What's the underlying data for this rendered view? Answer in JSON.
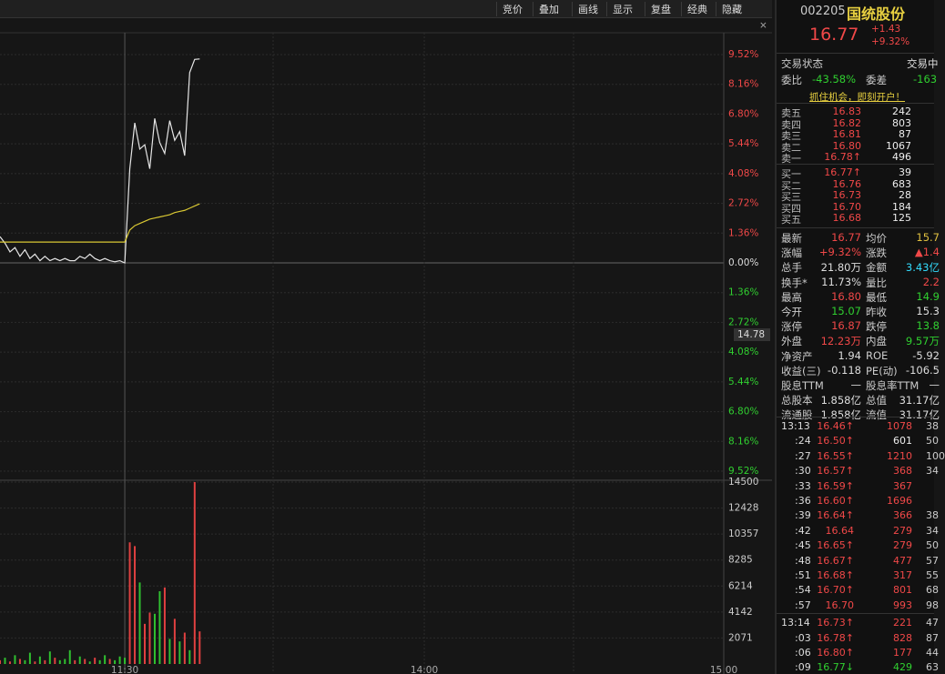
{
  "toolbar": [
    "竞价",
    "叠加",
    "画线",
    "显示",
    "复盘",
    "经典",
    "隐藏"
  ],
  "chart_data": [
    {
      "type": "line",
      "series": [
        {
          "color": "#e6e6e6",
          "values": [
            1.2,
            0.9,
            0.5,
            0.7,
            0.3,
            0.6,
            0.2,
            0.4,
            0.1,
            0.3,
            0.1,
            0.2,
            0.1,
            0.2,
            0.1,
            0.1,
            0.3,
            0.2,
            0.4,
            0.2,
            0.1,
            0.2,
            0.1,
            0.05,
            0.1,
            0.0,
            4.3,
            6.4,
            5.2,
            5.4,
            4.3,
            6.6,
            5.5,
            5.0,
            6.5,
            5.6,
            6.0,
            4.9,
            8.7,
            9.3,
            9.32
          ]
        },
        {
          "color": "#d9c833",
          "values": [
            0.95,
            0.95,
            0.95,
            0.95,
            0.95,
            0.95,
            0.95,
            0.95,
            0.95,
            0.95,
            0.95,
            0.95,
            0.95,
            0.95,
            0.95,
            0.95,
            0.95,
            0.95,
            0.95,
            0.95,
            0.95,
            0.95,
            0.95,
            0.95,
            0.95,
            0.95,
            1.5,
            1.7,
            1.8,
            1.9,
            2.0,
            2.05,
            2.1,
            2.15,
            2.2,
            2.3,
            2.35,
            2.4,
            2.5,
            2.6,
            2.7
          ]
        }
      ],
      "xlim": [
        0,
        145
      ],
      "ylim": [
        -9.52,
        9.52
      ],
      "yticks": [
        {
          "value": 9.52,
          "label": "9.52%"
        },
        {
          "value": 8.16,
          "label": "8.16%"
        },
        {
          "value": 6.8,
          "label": "6.80%"
        },
        {
          "value": 5.44,
          "label": "5.44%"
        },
        {
          "value": 4.08,
          "label": "4.08%"
        },
        {
          "value": 2.72,
          "label": "2.72%"
        },
        {
          "value": 1.36,
          "label": "1.36%"
        },
        {
          "value": 0,
          "label": "0.00%"
        },
        {
          "value": -1.36,
          "label": "1.36%"
        },
        {
          "value": -2.72,
          "label": "2.72%"
        },
        {
          "value": -4.08,
          "label": "4.08%"
        },
        {
          "value": -5.44,
          "label": "5.44%"
        },
        {
          "value": -6.8,
          "label": "6.80%"
        },
        {
          "value": -8.16,
          "label": "8.16%"
        },
        {
          "value": -9.52,
          "label": "9.52%"
        }
      ],
      "cursor_label": "14.78"
    },
    {
      "type": "bar",
      "values": [
        300,
        500,
        200,
        700,
        400,
        300,
        900,
        200,
        600,
        300,
        1000,
        500,
        300,
        400,
        1100,
        300,
        600,
        400,
        200,
        500,
        300,
        700,
        400,
        300,
        600,
        500,
        9700,
        9400,
        6500,
        3200,
        4100,
        4000,
        5800,
        6100,
        2000,
        3600,
        1800,
        2500,
        1100,
        14500,
        2600
      ],
      "colors": [
        "#e04040",
        "#30c030",
        "#e04040",
        "#30c030",
        "#e04040",
        "#30c030",
        "#30c030",
        "#e04040",
        "#30c030",
        "#e04040",
        "#30c030",
        "#e04040",
        "#30c030",
        "#30c030",
        "#30c030",
        "#e04040",
        "#30c030",
        "#e04040",
        "#30c030",
        "#e04040",
        "#30c030",
        "#30c030",
        "#e04040",
        "#30c030",
        "#30c030",
        "#30c030",
        "#e04040",
        "#e04040",
        "#30c030",
        "#e04040",
        "#e04040",
        "#30c030",
        "#30c030",
        "#e04040",
        "#30c030",
        "#e04040",
        "#30c030",
        "#e04040",
        "#30c030",
        "#e04040",
        "#e04040"
      ],
      "xlim": [
        0,
        145
      ],
      "ylim": [
        0,
        14500
      ],
      "yticks": [
        2071,
        4142,
        6214,
        8285,
        10357,
        12428,
        14500
      ],
      "xticks": [
        {
          "value": 25,
          "label": "11:30"
        },
        {
          "value": 85,
          "label": "14:00"
        },
        {
          "value": 145,
          "label": "15:00"
        }
      ]
    }
  ],
  "quote": {
    "code": "002205",
    "name": "国统股份",
    "price": "16.77",
    "change": "+1.43",
    "pct": "+9.32%"
  },
  "status": [
    "交易状态",
    "交易中"
  ],
  "ratio": [
    "委比",
    "-43.58%",
    "委差",
    "-163"
  ],
  "promo": "抓住机会，即刻开户！",
  "book": [
    [
      "卖五",
      "16.83",
      "242"
    ],
    [
      "卖四",
      "16.82",
      "803"
    ],
    [
      "卖三",
      "16.81",
      "87"
    ],
    [
      "卖二",
      "16.80",
      "1067"
    ],
    [
      "卖一",
      "16.78↑",
      "496"
    ],
    [
      "买一",
      "16.77↑",
      "39"
    ],
    [
      "买二",
      "16.76",
      "683"
    ],
    [
      "买三",
      "16.73",
      "28"
    ],
    [
      "买四",
      "16.70",
      "184"
    ],
    [
      "买五",
      "16.68",
      "125"
    ]
  ],
  "stats": [
    [
      "最新",
      "16.77",
      "均价",
      "15.7"
    ],
    [
      "涨幅",
      "+9.32%",
      "涨跌",
      "▲1.4"
    ],
    [
      "总手",
      "21.80万",
      "金额",
      "3.43亿"
    ],
    [
      "换手*",
      "11.73%",
      "量比",
      "2.2"
    ],
    [
      "最高",
      "16.80",
      "最低",
      "14.9"
    ],
    [
      "今开",
      "15.07",
      "昨收",
      "15.3"
    ],
    [
      "涨停",
      "16.87",
      "跌停",
      "13.8"
    ],
    [
      "外盘",
      "12.23万",
      "内盘",
      "9.57万"
    ],
    [
      "净资产",
      "1.94",
      "ROE",
      "-5.92"
    ],
    [
      "收益(三)",
      "-0.118",
      "PE(动)",
      "-106.5"
    ],
    [
      "股息TTM",
      "—",
      "股息率TTM",
      "—"
    ],
    [
      "总股本",
      "1.858亿",
      "总值",
      "31.17亿"
    ],
    [
      "流通股",
      "1.858亿",
      "流值",
      "31.17亿"
    ]
  ],
  "stat_colors": [
    [
      "#f04848",
      "#e0c040"
    ],
    [
      "#f04848",
      "#f04848"
    ],
    [
      "#ddd",
      "#33ddff"
    ],
    [
      "#ddd",
      "#f04848"
    ],
    [
      "#f04848",
      "#30d030"
    ],
    [
      "#30d030",
      "#ddd"
    ],
    [
      "#f04848",
      "#30d030"
    ],
    [
      "#f04848",
      "#30d030"
    ],
    [
      "#ddd",
      "#ddd"
    ],
    [
      "#ddd",
      "#ddd"
    ],
    [
      "#ddd",
      "#ddd"
    ],
    [
      "#ddd",
      "#ddd"
    ],
    [
      "#ddd",
      "#ddd"
    ]
  ],
  "ticks": [
    [
      "13:13",
      "16.46↑",
      "1078",
      "38"
    ],
    [
      ":24",
      "16.50↑",
      "601",
      "50"
    ],
    [
      ":27",
      "16.55↑",
      "1210",
      "100"
    ],
    [
      ":30",
      "16.57↑",
      "368",
      "34"
    ],
    [
      ":33",
      "16.59↑",
      "367",
      ""
    ],
    [
      ":36",
      "16.60↑",
      "1696",
      ""
    ],
    [
      ":39",
      "16.64↑",
      "366",
      "38"
    ],
    [
      ":42",
      "16.64",
      "279",
      "34"
    ],
    [
      ":45",
      "16.65↑",
      "279",
      "50"
    ],
    [
      ":48",
      "16.67↑",
      "477",
      "57"
    ],
    [
      ":51",
      "16.68↑",
      "317",
      "55"
    ],
    [
      ":54",
      "16.70↑",
      "801",
      "68"
    ],
    [
      ":57",
      "16.70",
      "993",
      "98"
    ],
    [
      "13:14",
      "16.73↑",
      "221",
      "47"
    ],
    [
      ":03",
      "16.78↑",
      "828",
      "87"
    ],
    [
      ":06",
      "16.80↑",
      "177",
      "44"
    ],
    [
      ":09",
      "16.77↓",
      "429",
      "63"
    ]
  ],
  "tick_colors": [
    "#f04848",
    "#f04848",
    "#f04848",
    "#f04848",
    "#f04848",
    "#f04848",
    "#f04848",
    "#f04848",
    "#f04848",
    "#f04848",
    "#f04848",
    "#f04848",
    "#f04848",
    "#f04848",
    "#f04848",
    "#f04848",
    "#30d030"
  ]
}
